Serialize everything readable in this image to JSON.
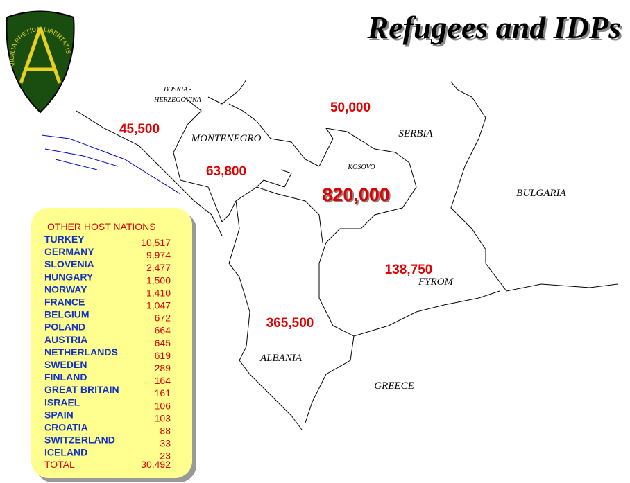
{
  "header": {
    "title": "Refugees and IDPs"
  },
  "logo": {
    "motto": "VIGILIA PRETIUM LIBERTATIS"
  },
  "map": {
    "countries": [
      "BOSNIA -",
      "HERZEGOVINA",
      "MONTENEGRO",
      "SERBIA",
      "KOSOVO",
      "BULGARIA",
      "FYROM",
      "ALBANIA",
      "GREECE"
    ],
    "counts": [
      "45,500",
      "50,000",
      "63,800",
      "820,000",
      "138,750",
      "365,500"
    ]
  },
  "table": {
    "title": "OTHER  HOST NATIONS",
    "rows": [
      [
        "TURKEY",
        "10,517"
      ],
      [
        "GERMANY",
        "9,974"
      ],
      [
        "SLOVENIA",
        "2,477"
      ],
      [
        "HUNGARY",
        "1,500"
      ],
      [
        "NORWAY",
        "1,410"
      ],
      [
        "FRANCE",
        "1,047"
      ],
      [
        "BELGIUM",
        "672"
      ],
      [
        "POLAND",
        "664"
      ],
      [
        "AUSTRIA",
        "645"
      ],
      [
        "NETHERLANDS",
        "619"
      ],
      [
        "SWEDEN",
        "289"
      ],
      [
        "FINLAND",
        "164"
      ],
      [
        "GREAT BRITAIN",
        "161"
      ],
      [
        "ISRAEL",
        "106"
      ],
      [
        "SPAIN",
        "103"
      ],
      [
        "CROATIA",
        "88"
      ],
      [
        "SWITZERLAND",
        "33"
      ],
      [
        "ICELAND",
        "23"
      ]
    ],
    "total": [
      "TOTAL",
      "30,492"
    ]
  }
}
